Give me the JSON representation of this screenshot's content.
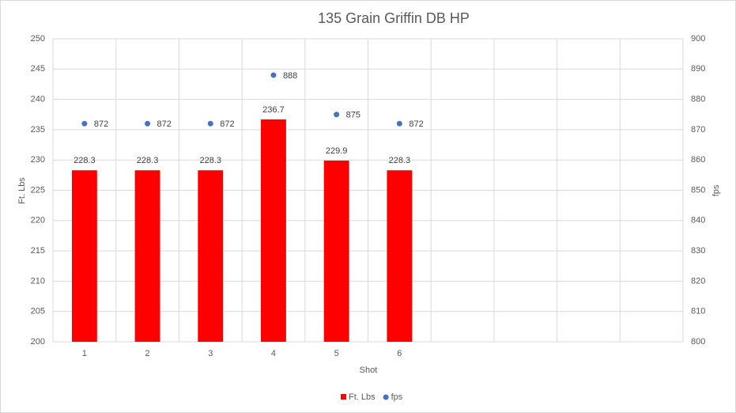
{
  "chart_data": {
    "type": "bar",
    "title": "135 Grain Griffin DB HP",
    "x_label": "Shot",
    "y_label": "Ft. Lbs",
    "y2_label": "fps",
    "categories": [
      "1",
      "2",
      "3",
      "4",
      "5",
      "6",
      null,
      null,
      null,
      null
    ],
    "series": [
      {
        "name": "Ft. Lbs",
        "type": "bar",
        "color": "#ff0000",
        "values": [
          228.3,
          228.3,
          228.3,
          236.7,
          229.9,
          228.3,
          null,
          null,
          null,
          null
        ]
      },
      {
        "name": "fps",
        "type": "scatter",
        "axis": "y2",
        "color": "#4472c4",
        "values": [
          872,
          872,
          872,
          888,
          875,
          872,
          null,
          null,
          null,
          null
        ]
      }
    ],
    "ylim": [
      200,
      250
    ],
    "yticks": [
      200,
      205,
      210,
      215,
      220,
      225,
      230,
      235,
      240,
      245,
      250
    ],
    "y2lim": [
      800,
      900
    ],
    "y2ticks": [
      800,
      810,
      820,
      830,
      840,
      850,
      860,
      870,
      880,
      890,
      900
    ],
    "grid": true,
    "legend": "bottom"
  }
}
